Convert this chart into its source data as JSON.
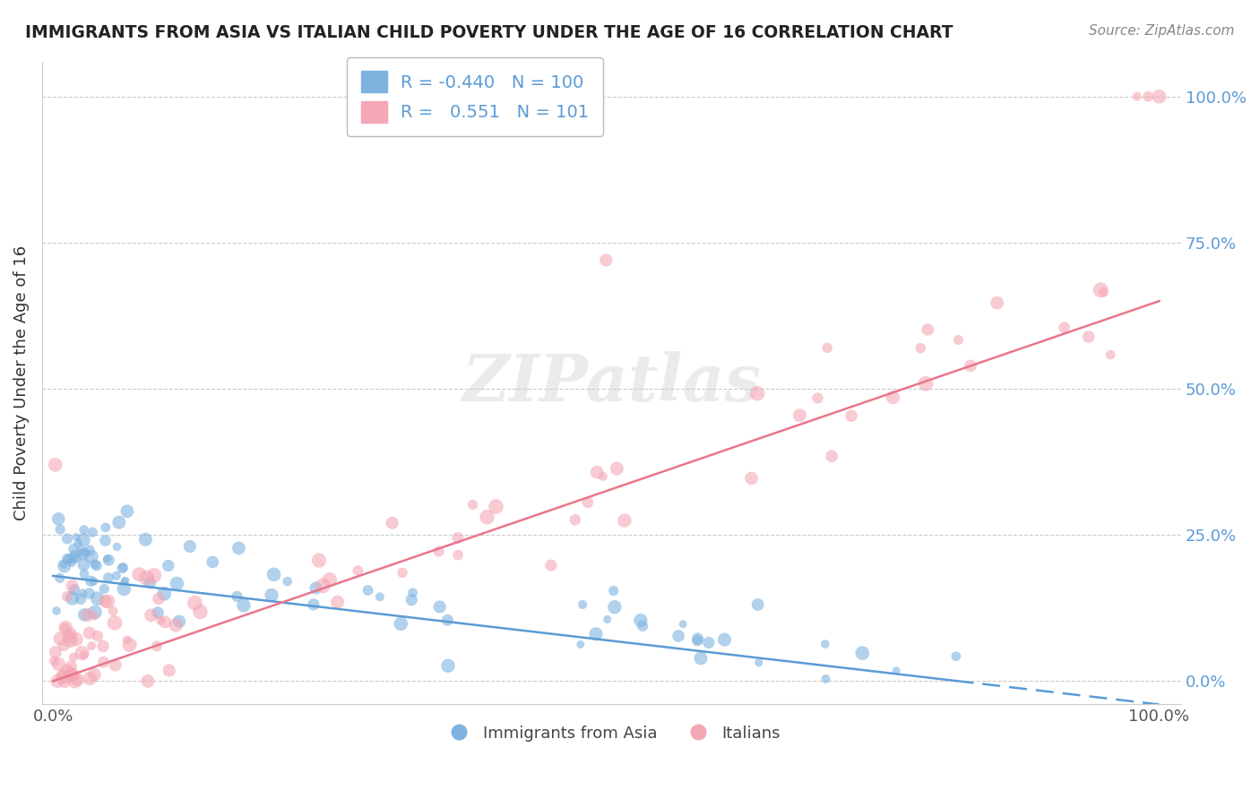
{
  "title": "IMMIGRANTS FROM ASIA VS ITALIAN CHILD POVERTY UNDER THE AGE OF 16 CORRELATION CHART",
  "source": "Source: ZipAtlas.com",
  "ylabel": "Child Poverty Under the Age of 16",
  "legend_r_blue": "-0.440",
  "legend_n_blue": "100",
  "legend_r_pink": "0.551",
  "legend_n_pink": "101",
  "blue_color": "#7EB3E0",
  "pink_color": "#F4A7B5",
  "blue_line_color": "#5B9BD5",
  "pink_line_color": "#E8768A",
  "watermark": "ZIPatlas",
  "watermark_color": "#CCCCCC",
  "blue_slope": -0.22,
  "blue_intercept": 0.18,
  "pink_slope": 0.65,
  "pink_intercept": 0.0,
  "right_yticklabels": [
    "0.0%",
    "25.0%",
    "50.0%",
    "75.0%",
    "100.0%"
  ],
  "right_yticks": [
    0.0,
    0.25,
    0.5,
    0.75,
    1.0
  ]
}
